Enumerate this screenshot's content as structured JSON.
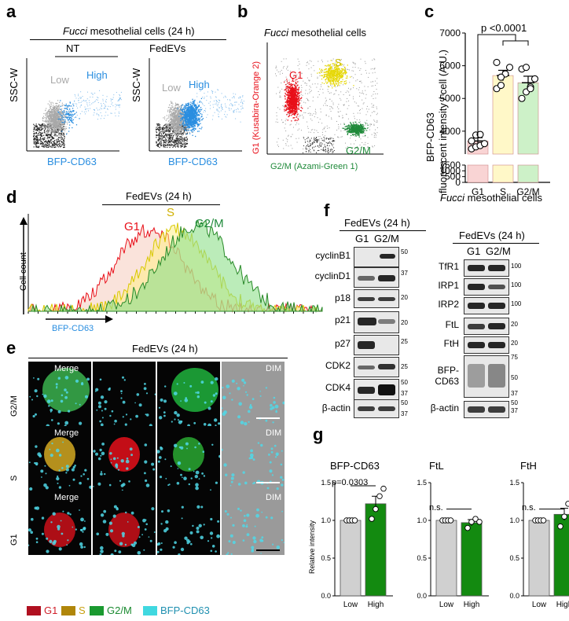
{
  "panel_labels": {
    "a": "a",
    "b": "b",
    "c": "c",
    "d": "d",
    "e": "e",
    "f": "f",
    "g": "g"
  },
  "panel_a": {
    "title_italic": "Fucci",
    "title_rest": " mesothelial cells (24 h)",
    "plot1_title": "NT",
    "plot2_title": "FedEVs",
    "ylabel": "SSC-W",
    "xlabel": "BFP-CD63",
    "low": "Low",
    "high": "High",
    "colors": {
      "low": "#a9a9a9",
      "high": "#2a8ee0",
      "bg": "#222222"
    }
  },
  "panel_b": {
    "title_italic": "Fucci",
    "title_rest": " mesothelial cells",
    "ylabel": "G1 (Kusabira-Orange 2)",
    "xlabel": "G2/M (Azami-Green 1)",
    "g1": "G1",
    "s": "S",
    "g2m": "G2/M",
    "colors": {
      "g1": "#e8101a",
      "s": "#e6d80a",
      "g2m": "#1f8a3a"
    }
  },
  "panel_c": {
    "ylabel_line1": "BFP-CD63",
    "ylabel_line2": "fluorescent intensity  / cell (A.U.)",
    "pvalue": "p <0.0001",
    "xlabel_italic": "Fucci",
    "xlabel_rest": " mesothelial cells",
    "ticks_upper": [
      "7000",
      "6000",
      "5000",
      "4000"
    ],
    "ticks_lower": [
      "1500",
      "1000",
      "500",
      "0"
    ]
  },
  "panel_d": {
    "title": "FedEVs (24 h)",
    "ylabel": "Cell count",
    "xlabel": "BFP-CD63",
    "g1": "G1",
    "s": "S",
    "g2m": "G2/M"
  },
  "panel_e": {
    "title": "FedEVs (24 h)",
    "rows": [
      "G2/M",
      "S",
      "G1"
    ],
    "merge": "Merge",
    "dim": "DIM",
    "legend": [
      {
        "label": "G1",
        "color": "#b01020",
        "text_color": "#d0202a"
      },
      {
        "label": "S",
        "color": "#b0860a",
        "text_color": "#c8a010"
      },
      {
        "label": "G2/M",
        "color": "#1a9a30",
        "text_color": "#1a8a30"
      },
      {
        "label": "BFP-CD63",
        "color": "#40d8e0",
        "text_color": "#2090b0"
      }
    ]
  },
  "panel_f": {
    "title": "FedEVs (24 h)",
    "cols": [
      "G1",
      "G2/M"
    ],
    "left_rows": [
      "cyclinB1",
      "cyclinD1",
      "p18",
      "p21",
      "p27",
      "CDK2",
      "CDK4",
      "β-actin"
    ],
    "right_rows": [
      "TfR1",
      "IRP1",
      "IRP2",
      "FtL",
      "FtH",
      "BFP-\nCD63",
      "β-actin"
    ],
    "mw_left": [
      "50",
      "37",
      "20",
      "20",
      "25",
      "25",
      "50",
      "37",
      "50",
      "37"
    ],
    "mw_right": [
      "100",
      "100",
      "100",
      "20",
      "20",
      "75",
      "50",
      "37",
      "50",
      "37"
    ]
  },
  "panel_g": {
    "ylabel": "Relative intensity",
    "yticks": [
      "1.5",
      "1.0",
      "0.5",
      "0.0"
    ],
    "categories": [
      "Low",
      "High"
    ],
    "titles": [
      "BFP-CD63",
      "FtL",
      "FtH"
    ],
    "annot": [
      "p=0.0303",
      "n.s.",
      "n.s."
    ]
  },
  "chart_data": [
    {
      "type": "bar",
      "panel": "c",
      "categories": [
        "G1",
        "S",
        "G2/M"
      ],
      "values": [
        3700,
        5700,
        5480
      ],
      "errors": [
        100,
        160,
        200
      ],
      "colors": [
        "#f9d4d4",
        "#fff8c8",
        "#cdf1c8"
      ],
      "points": [
        [
          3460,
          3520,
          3560,
          3620,
          3700,
          3880,
          3900
        ],
        [
          5300,
          5400,
          5750,
          5950,
          6100,
          5650
        ],
        [
          5000,
          5200,
          5350,
          5600,
          5900,
          5950,
          5300
        ]
      ],
      "ylim": [
        0,
        7000
      ],
      "axis_break": [
        1500,
        3300
      ]
    },
    {
      "type": "bar",
      "panel": "g1",
      "categories": [
        "Low",
        "High"
      ],
      "values": [
        1.0,
        1.22
      ],
      "errors": [
        0,
        0.1
      ],
      "points": [
        [
          1,
          1,
          1,
          1
        ],
        [
          1.02,
          1.15,
          1.32,
          1.42
        ]
      ],
      "ylim": [
        0,
        1.5
      ]
    },
    {
      "type": "bar",
      "panel": "g2",
      "categories": [
        "Low",
        "High"
      ],
      "values": [
        1.0,
        0.97
      ],
      "errors": [
        0,
        0.04
      ],
      "points": [
        [
          1,
          1,
          1,
          1
        ],
        [
          0.9,
          0.98,
          1.02,
          0.98
        ]
      ],
      "ylim": [
        0,
        1.5
      ]
    },
    {
      "type": "bar",
      "panel": "g3",
      "categories": [
        "Low",
        "High"
      ],
      "values": [
        1.0,
        1.08
      ],
      "errors": [
        0,
        0.08
      ],
      "points": [
        [
          1,
          1,
          1,
          1
        ],
        [
          0.92,
          1.05,
          1.22,
          1.18
        ]
      ],
      "ylim": [
        0,
        1.5
      ]
    }
  ]
}
